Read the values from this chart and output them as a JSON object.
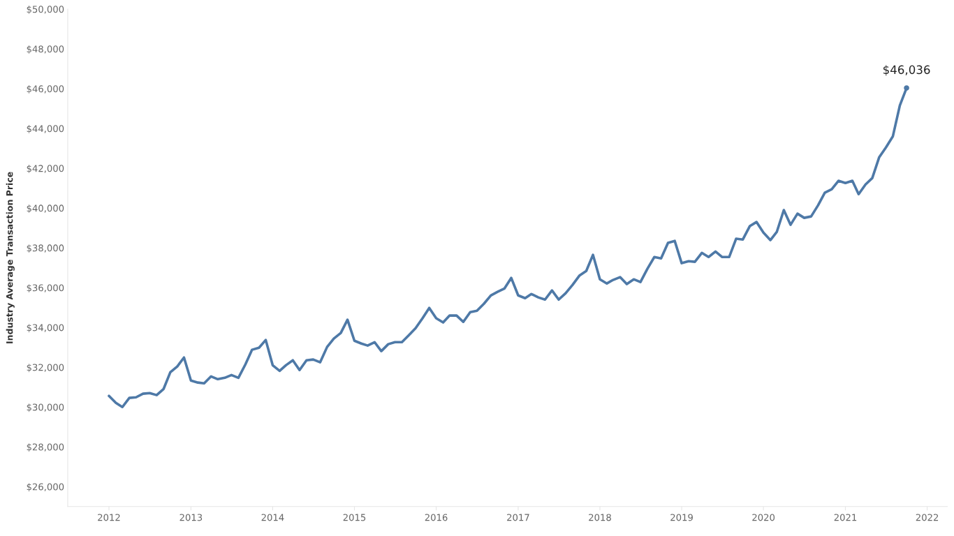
{
  "chart_data": {
    "type": "line",
    "ylabel": "Industry Average Transaction Price",
    "x": [
      "2012-01",
      "2012-02",
      "2012-03",
      "2012-04",
      "2012-05",
      "2012-06",
      "2012-07",
      "2012-08",
      "2012-09",
      "2012-10",
      "2012-11",
      "2012-12",
      "2013-01",
      "2013-02",
      "2013-03",
      "2013-04",
      "2013-05",
      "2013-06",
      "2013-07",
      "2013-08",
      "2013-09",
      "2013-10",
      "2013-11",
      "2013-12",
      "2014-01",
      "2014-02",
      "2014-03",
      "2014-04",
      "2014-05",
      "2014-06",
      "2014-07",
      "2014-08",
      "2014-09",
      "2014-10",
      "2014-11",
      "2014-12",
      "2015-01",
      "2015-02",
      "2015-03",
      "2015-04",
      "2015-05",
      "2015-06",
      "2015-07",
      "2015-08",
      "2015-09",
      "2015-10",
      "2015-11",
      "2015-12",
      "2016-01",
      "2016-02",
      "2016-03",
      "2016-04",
      "2016-05",
      "2016-06",
      "2016-07",
      "2016-08",
      "2016-09",
      "2016-10",
      "2016-11",
      "2016-12",
      "2017-01",
      "2017-02",
      "2017-03",
      "2017-04",
      "2017-05",
      "2017-06",
      "2017-07",
      "2017-08",
      "2017-09",
      "2017-10",
      "2017-11",
      "2017-12",
      "2018-01",
      "2018-02",
      "2018-03",
      "2018-04",
      "2018-05",
      "2018-06",
      "2018-07",
      "2018-08",
      "2018-09",
      "2018-10",
      "2018-11",
      "2018-12",
      "2019-01",
      "2019-02",
      "2019-03",
      "2019-04",
      "2019-05",
      "2019-06",
      "2019-07",
      "2019-08",
      "2019-09",
      "2019-10",
      "2019-11",
      "2019-12",
      "2020-01",
      "2020-02",
      "2020-03",
      "2020-04",
      "2020-05",
      "2020-06",
      "2020-07",
      "2020-08",
      "2020-09",
      "2020-10",
      "2020-11",
      "2020-12",
      "2021-01",
      "2021-02",
      "2021-03",
      "2021-04",
      "2021-05",
      "2021-06",
      "2021-07",
      "2021-08",
      "2021-09",
      "2021-10"
    ],
    "series": [
      {
        "color": "#4e79a7",
        "values": [
          30560,
          30210,
          30000,
          30460,
          30490,
          30670,
          30700,
          30600,
          30910,
          31750,
          32040,
          32490,
          31330,
          31230,
          31190,
          31540,
          31400,
          31470,
          31610,
          31470,
          32140,
          32880,
          32980,
          33370,
          32100,
          31820,
          32100,
          32350,
          31860,
          32350,
          32390,
          32250,
          33020,
          33440,
          33720,
          34390,
          33330,
          33190,
          33090,
          33260,
          32810,
          33160,
          33260,
          33260,
          33610,
          33960,
          34460,
          34980,
          34460,
          34250,
          34600,
          34600,
          34280,
          34770,
          34840,
          35190,
          35610,
          35790,
          35960,
          36490,
          35610,
          35470,
          35680,
          35510,
          35400,
          35860,
          35400,
          35720,
          36140,
          36600,
          36840,
          37650,
          36420,
          36210,
          36390,
          36530,
          36180,
          36420,
          36280,
          36950,
          37540,
          37470,
          38250,
          38350,
          37230,
          37330,
          37300,
          37750,
          37540,
          37820,
          37540,
          37540,
          38460,
          38420,
          39090,
          39300,
          38770,
          38390,
          38810,
          39900,
          39160,
          39720,
          39510,
          39580,
          40140,
          40770,
          40950,
          41370,
          41260,
          41370,
          40700,
          41190,
          41510,
          42560,
          43050,
          43610,
          45160,
          46036
        ]
      }
    ],
    "annotations": [
      {
        "text": "$46,036",
        "x": "2021-10",
        "y": 46036
      }
    ],
    "xlim": [
      "2011-07",
      "2022-04"
    ],
    "xticks": [
      "2012",
      "2013",
      "2014",
      "2015",
      "2016",
      "2017",
      "2018",
      "2019",
      "2020",
      "2021",
      "2022"
    ],
    "ylim": [
      25000,
      50000
    ],
    "yticks": [
      {
        "value": 26000,
        "label": "$26,000"
      },
      {
        "value": 28000,
        "label": "$28,000"
      },
      {
        "value": 30000,
        "label": "$30,000"
      },
      {
        "value": 32000,
        "label": "$32,000"
      },
      {
        "value": 34000,
        "label": "$34,000"
      },
      {
        "value": 36000,
        "label": "$36,000"
      },
      {
        "value": 38000,
        "label": "$38,000"
      },
      {
        "value": 40000,
        "label": "$40,000"
      },
      {
        "value": 42000,
        "label": "$42,000"
      },
      {
        "value": 44000,
        "label": "$44,000"
      },
      {
        "value": 46000,
        "label": "$46,000"
      },
      {
        "value": 48000,
        "label": "$48,000"
      },
      {
        "value": 50000,
        "label": "$50,000"
      }
    ],
    "grid": false,
    "legend": false
  }
}
